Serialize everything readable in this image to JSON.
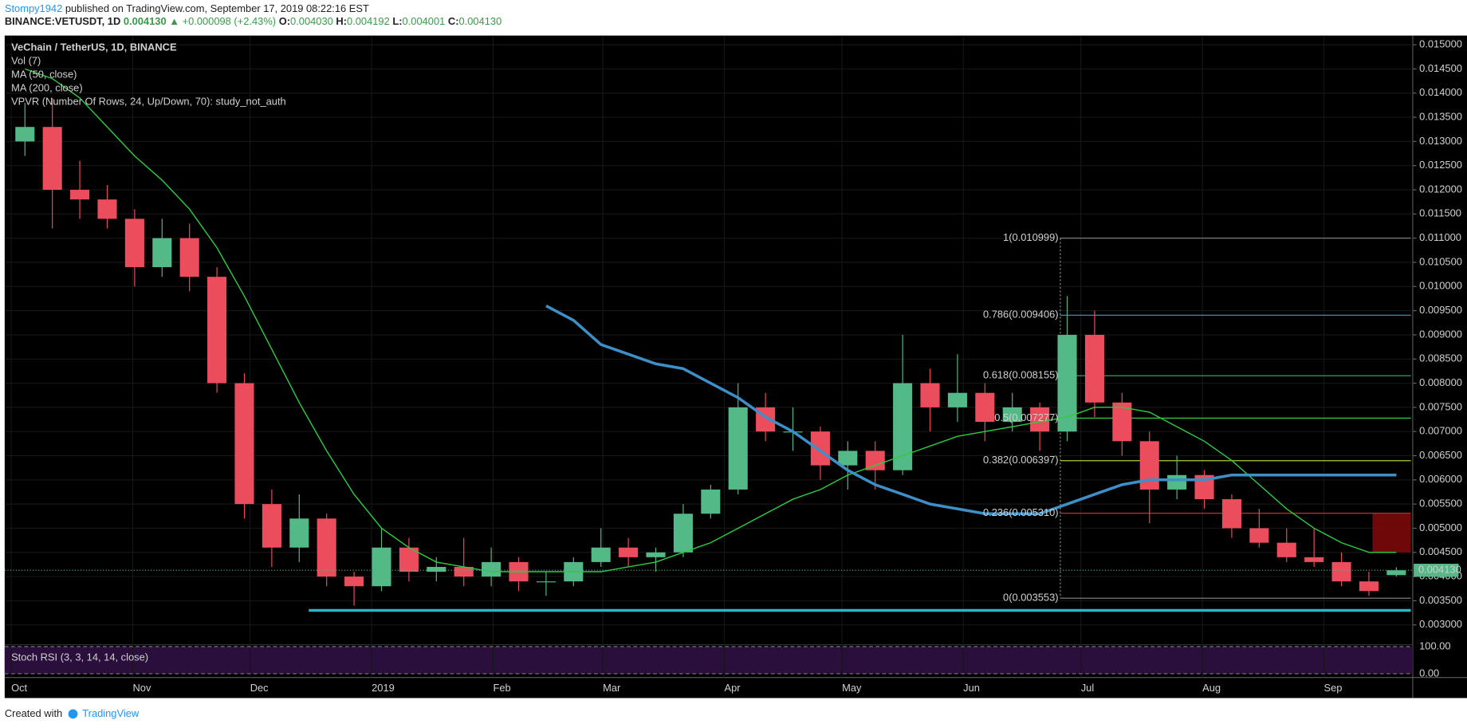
{
  "header": {
    "author": "Stompy1942",
    "published": " published on TradingView.com, September 17, 2019 08:22:16 EST",
    "symbol": "BINANCE:VETUSDT, 1D",
    "price": "0.004130",
    "arrow": "▲",
    "change": "+0.000098 (+2.43%)",
    "o_label": "O:",
    "o": "0.004030",
    "h_label": "H:",
    "h": "0.004192",
    "l_label": "L:",
    "l": "0.004001",
    "c_label": "C:",
    "c": "0.004130"
  },
  "footer": {
    "created": "Created with",
    "brand": "TradingView"
  },
  "chart_data": {
    "type": "candlestick",
    "legend": [
      "VeChain / TetherUS, 1D, BINANCE",
      "Vol (7)",
      "MA (50, close)",
      "MA (200, close)",
      "VPVR (Number Of Rows, 24, Up/Down, 70): study_not_auth"
    ],
    "up_color": "#53b987",
    "down_color": "#eb4d5c",
    "open": [
      0.013,
      0.0133,
      0.012,
      0.0118,
      0.0114,
      0.0104,
      0.011,
      0.0102,
      0.008,
      0.0055,
      0.0046,
      0.0052,
      0.004,
      0.0038,
      0.0046,
      0.0041,
      0.0042,
      0.004,
      0.0043,
      0.0039,
      0.0039,
      0.0043,
      0.0046,
      0.0044,
      0.0045,
      0.0053,
      0.0058,
      0.0075,
      0.007,
      0.007,
      0.0063,
      0.0066,
      0.0062,
      0.008,
      0.0075,
      0.0078,
      0.0072,
      0.0075,
      0.007,
      0.009,
      0.0076,
      0.0068,
      0.0058,
      0.0061,
      0.0056,
      0.005,
      0.0047,
      0.0044,
      0.0043,
      0.0039,
      0.00403
    ],
    "high": [
      0.0138,
      0.0139,
      0.0126,
      0.0121,
      0.0116,
      0.0114,
      0.0113,
      0.0104,
      0.0082,
      0.0058,
      0.0057,
      0.0053,
      0.0041,
      0.005,
      0.0048,
      0.0044,
      0.0048,
      0.0046,
      0.0044,
      0.0041,
      0.0044,
      0.005,
      0.0048,
      0.0046,
      0.0055,
      0.0059,
      0.008,
      0.0078,
      0.0075,
      0.0071,
      0.0068,
      0.0068,
      0.009,
      0.0083,
      0.0086,
      0.008,
      0.0078,
      0.0076,
      0.0098,
      0.0095,
      0.0078,
      0.007,
      0.0065,
      0.0062,
      0.0057,
      0.0054,
      0.005,
      0.005,
      0.0045,
      0.0041,
      0.004192
    ],
    "low": [
      0.0127,
      0.0112,
      0.0114,
      0.0112,
      0.01,
      0.0102,
      0.0099,
      0.0078,
      0.0052,
      0.0042,
      0.0043,
      0.0038,
      0.0034,
      0.0037,
      0.0039,
      0.0039,
      0.0038,
      0.0038,
      0.0037,
      0.0036,
      0.0038,
      0.0042,
      0.0042,
      0.0041,
      0.0044,
      0.0052,
      0.0057,
      0.0068,
      0.0066,
      0.006,
      0.0058,
      0.0058,
      0.0061,
      0.007,
      0.0072,
      0.0068,
      0.007,
      0.0066,
      0.0068,
      0.0073,
      0.0065,
      0.0051,
      0.0056,
      0.0054,
      0.0048,
      0.0046,
      0.0043,
      0.0042,
      0.0038,
      0.0036,
      0.004001
    ],
    "close": [
      0.0133,
      0.012,
      0.0118,
      0.0114,
      0.0104,
      0.011,
      0.0102,
      0.008,
      0.0055,
      0.0046,
      0.0052,
      0.004,
      0.0038,
      0.0046,
      0.0041,
      0.0042,
      0.004,
      0.0043,
      0.0039,
      0.0039,
      0.0043,
      0.0046,
      0.0044,
      0.0045,
      0.0053,
      0.0058,
      0.0075,
      0.007,
      0.007,
      0.0063,
      0.0066,
      0.0062,
      0.008,
      0.0075,
      0.0078,
      0.0072,
      0.0075,
      0.007,
      0.009,
      0.0076,
      0.0068,
      0.0058,
      0.0061,
      0.0056,
      0.005,
      0.0047,
      0.0044,
      0.0043,
      0.0039,
      0.0037,
      0.00413
    ],
    "series": [
      {
        "name": "MA (50, close)",
        "color": "#2ecc40",
        "values": [
          0.0145,
          0.0143,
          0.0139,
          0.0133,
          0.0127,
          0.0122,
          0.0116,
          0.0108,
          0.0098,
          0.0087,
          0.0076,
          0.0066,
          0.0057,
          0.005,
          0.0046,
          0.0043,
          0.0042,
          0.0041,
          0.0041,
          0.0041,
          0.0041,
          0.0041,
          0.0042,
          0.0043,
          0.0045,
          0.0047,
          0.005,
          0.0053,
          0.0056,
          0.0058,
          0.0061,
          0.0063,
          0.0065,
          0.0067,
          0.0069,
          0.007,
          0.0071,
          0.0072,
          0.0073,
          0.0075,
          0.0075,
          0.0074,
          0.0071,
          0.0068,
          0.0064,
          0.0059,
          0.0054,
          0.005,
          0.0047,
          0.0045,
          0.0045
        ]
      },
      {
        "name": "MA (200, close)",
        "color": "#3d8fc8",
        "values": [
          null,
          null,
          null,
          null,
          null,
          null,
          null,
          null,
          null,
          null,
          null,
          null,
          null,
          null,
          null,
          null,
          null,
          null,
          null,
          0.0096,
          0.0093,
          0.0088,
          0.0086,
          0.0084,
          0.0083,
          0.008,
          0.0077,
          0.0073,
          0.007,
          0.0066,
          0.0062,
          0.0059,
          0.0057,
          0.0055,
          0.0054,
          0.0053,
          0.0053,
          0.0053,
          0.0055,
          0.0057,
          0.0059,
          0.006,
          0.006,
          0.006,
          0.0061,
          0.0061,
          0.0061,
          0.0061,
          0.0061,
          0.0061,
          0.0061
        ]
      }
    ],
    "fib": [
      {
        "value": 0.010999,
        "label": "1(0.010999)",
        "color": "#888888"
      },
      {
        "value": 0.009406,
        "label": "0.786(0.009406)",
        "color": "#3d9bd6"
      },
      {
        "value": 0.008155,
        "label": "0.618(0.008155)",
        "color": "#3fb06a"
      },
      {
        "value": 0.007277,
        "label": "0.5(0.007277)",
        "color": "#2ecc40"
      },
      {
        "value": 0.006397,
        "label": "0.382(0.006397)",
        "color": "#a5d22b"
      },
      {
        "value": 0.00531,
        "label": "0.236(0.005310)",
        "color": "#d03a3a"
      },
      {
        "value": 0.003553,
        "label": "0(0.003553)",
        "color": "#888888"
      }
    ],
    "support": 0.0033,
    "support_color": "#2bb5c0",
    "zone": [
      0.0053,
      0.0045
    ],
    "zone_color": "#8b0a0a",
    "last_price": {
      "value": 0.00413,
      "label": "0.004130"
    },
    "ylim": [
      0.00261,
      0.01519
    ],
    "yticks": [
      {
        "value": 0.003,
        "label": "0.003000"
      },
      {
        "value": 0.0035,
        "label": "0.003500"
      },
      {
        "value": 0.004,
        "label": "0.004000"
      },
      {
        "value": 0.0045,
        "label": "0.004500"
      },
      {
        "value": 0.005,
        "label": "0.005000"
      },
      {
        "value": 0.0055,
        "label": "0.005500"
      },
      {
        "value": 0.006,
        "label": "0.006000"
      },
      {
        "value": 0.0065,
        "label": "0.006500"
      },
      {
        "value": 0.007,
        "label": "0.007000"
      },
      {
        "value": 0.0075,
        "label": "0.007500"
      },
      {
        "value": 0.008,
        "label": "0.008000"
      },
      {
        "value": 0.0085,
        "label": "0.008500"
      },
      {
        "value": 0.009,
        "label": "0.009000"
      },
      {
        "value": 0.0095,
        "label": "0.009500"
      },
      {
        "value": 0.01,
        "label": "0.010000"
      },
      {
        "value": 0.0105,
        "label": "0.010500"
      },
      {
        "value": 0.011,
        "label": "0.011000"
      },
      {
        "value": 0.0115,
        "label": "0.011500"
      },
      {
        "value": 0.012,
        "label": "0.012000"
      },
      {
        "value": 0.0125,
        "label": "0.012500"
      },
      {
        "value": 0.013,
        "label": "0.013000"
      },
      {
        "value": 0.0135,
        "label": "0.013500"
      },
      {
        "value": 0.014,
        "label": "0.014000"
      },
      {
        "value": 0.0145,
        "label": "0.014500"
      },
      {
        "value": 0.015,
        "label": "0.015000"
      }
    ],
    "xticks": [
      {
        "value": 0,
        "label": "Oct"
      },
      {
        "value": 4.43,
        "label": "Nov"
      },
      {
        "value": 8.71,
        "label": "Dec"
      },
      {
        "value": 13.14,
        "label": "2019"
      },
      {
        "value": 17.57,
        "label": "Feb"
      },
      {
        "value": 21.57,
        "label": "Mar"
      },
      {
        "value": 26,
        "label": "Apr"
      },
      {
        "value": 30.29,
        "label": "May"
      },
      {
        "value": 34.71,
        "label": "Jun"
      },
      {
        "value": 39,
        "label": "Jul"
      },
      {
        "value": 43.43,
        "label": "Aug"
      },
      {
        "value": 47.86,
        "label": "Sep"
      }
    ],
    "stoch": {
      "title": "Stoch RSI (3, 3, 14, 14, close)",
      "yticks": [
        {
          "value": 100,
          "label": "100.00"
        },
        {
          "value": 0,
          "label": "0.00"
        }
      ],
      "ylim": [
        0,
        100
      ]
    },
    "grid": true
  }
}
